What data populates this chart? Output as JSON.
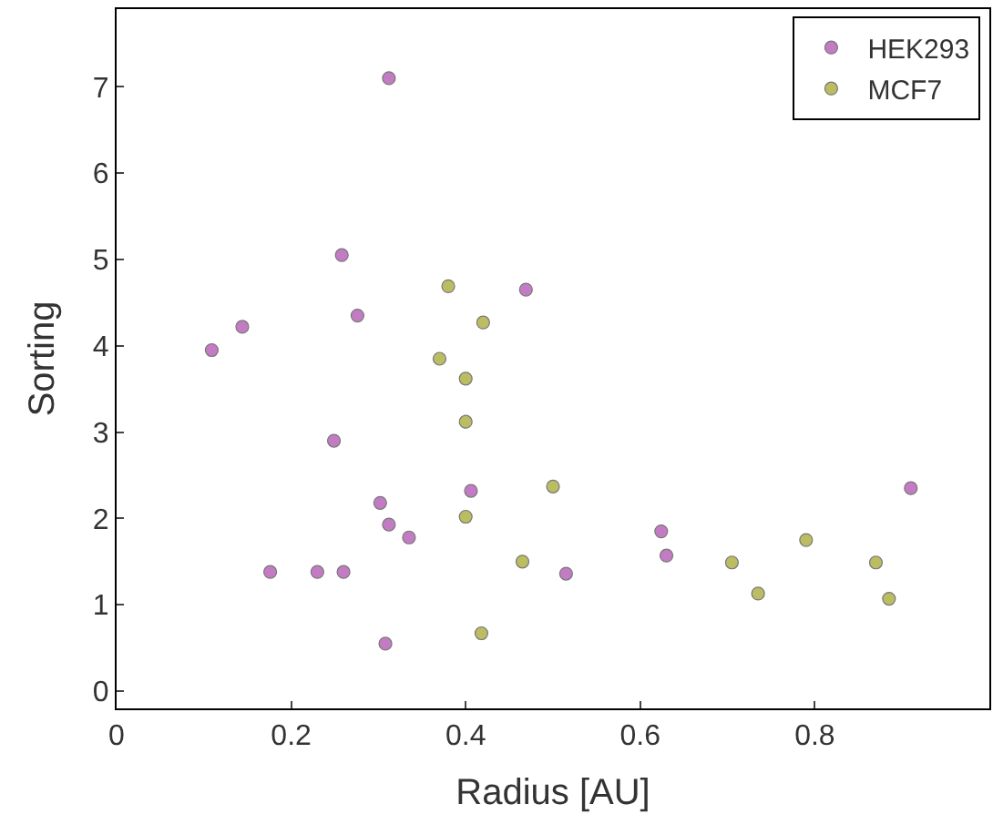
{
  "chart_data": {
    "type": "scatter",
    "xlabel": "Radius [AU]",
    "ylabel": "Sorting",
    "xlim": [
      0,
      1
    ],
    "ylim": [
      -0.2,
      7.9
    ],
    "xticks": [
      0,
      0.2,
      0.4,
      0.6,
      0.8
    ],
    "yticks": [
      0,
      1,
      2,
      3,
      4,
      5,
      6,
      7
    ],
    "legend": "top right",
    "marker": "circle",
    "series": [
      {
        "name": "HEK293",
        "color": "#c37cc4",
        "x": [
          0.312,
          0.258,
          0.469,
          0.276,
          0.144,
          0.109,
          0.249,
          0.406,
          0.302,
          0.312,
          0.335,
          0.176,
          0.23,
          0.26,
          0.308,
          0.624,
          0.63,
          0.515,
          0.91
        ],
        "values": [
          7.1,
          5.05,
          4.65,
          4.35,
          4.22,
          3.95,
          2.9,
          2.32,
          2.18,
          1.93,
          1.78,
          1.38,
          1.38,
          1.38,
          0.55,
          1.85,
          1.57,
          1.36,
          2.35
        ]
      },
      {
        "name": "MCF7",
        "color": "#bcbc62",
        "x": [
          0.38,
          0.42,
          0.37,
          0.4,
          0.4,
          0.5,
          0.4,
          0.465,
          0.705,
          0.79,
          0.735,
          0.87,
          0.885,
          0.418
        ],
        "values": [
          4.69,
          4.27,
          3.85,
          3.62,
          3.12,
          2.37,
          2.02,
          1.5,
          1.49,
          1.75,
          1.13,
          1.49,
          1.07,
          0.67
        ]
      }
    ]
  }
}
